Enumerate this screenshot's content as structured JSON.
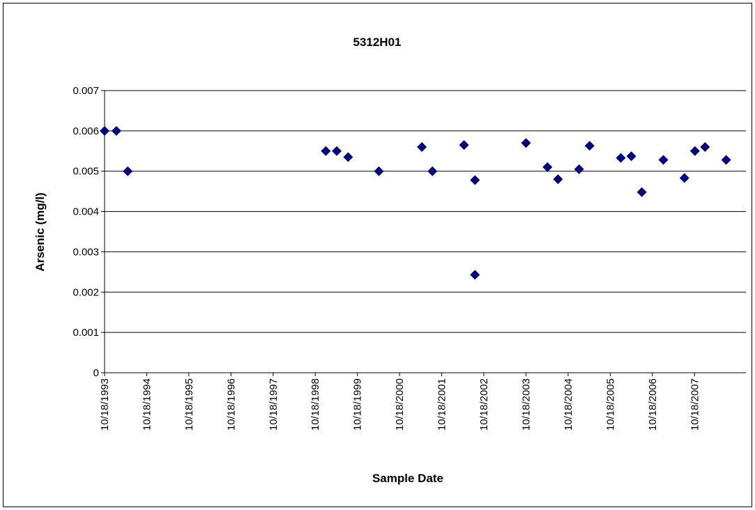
{
  "chart_data": {
    "type": "scatter",
    "title": "5312H01",
    "x_label": "Sample Date",
    "y_label": "Arsenic (mg/l)",
    "series": [
      {
        "name": "Arsenic",
        "color": "#000080",
        "x": [
          1993.8,
          1994.08,
          1994.35,
          1999.05,
          1999.31,
          1999.58,
          2000.31,
          2001.33,
          2001.58,
          2002.33,
          2002.59,
          2002.59,
          2003.8,
          2004.31,
          2004.56,
          2005.06,
          2005.31,
          2006.05,
          2006.3,
          2006.55,
          2007.06,
          2007.56,
          2007.81,
          2008.05,
          2008.55
        ],
        "values": [
          0.006,
          0.006,
          0.005,
          0.0055,
          0.0055,
          0.00535,
          0.005,
          0.0056,
          0.005,
          0.00565,
          0.00478,
          0.00243,
          0.0057,
          0.0051,
          0.0048,
          0.00505,
          0.00563,
          0.00533,
          0.00537,
          0.00448,
          0.00528,
          0.00483,
          0.0055,
          0.0056,
          0.00528
        ]
      }
    ],
    "xlim": [
      1993.8,
      2009.02
    ],
    "xticks": [
      {
        "value": 1993.8,
        "label": "10/18/1993"
      },
      {
        "value": 1994.8,
        "label": "10/18/1994"
      },
      {
        "value": 1995.8,
        "label": "10/18/1995"
      },
      {
        "value": 1996.8,
        "label": "10/18/1996"
      },
      {
        "value": 1997.8,
        "label": "10/18/1997"
      },
      {
        "value": 1998.8,
        "label": "10/18/1998"
      },
      {
        "value": 1999.8,
        "label": "10/18/1999"
      },
      {
        "value": 2000.8,
        "label": "10/18/2000"
      },
      {
        "value": 2001.8,
        "label": "10/18/2001"
      },
      {
        "value": 2002.8,
        "label": "10/18/2002"
      },
      {
        "value": 2003.8,
        "label": "10/18/2003"
      },
      {
        "value": 2004.8,
        "label": "10/18/2004"
      },
      {
        "value": 2005.8,
        "label": "10/18/2005"
      },
      {
        "value": 2006.8,
        "label": "10/18/2006"
      },
      {
        "value": 2007.8,
        "label": "10/18/2007"
      }
    ],
    "ylim": [
      0,
      0.007
    ],
    "yticks": [
      0,
      0.001,
      0.002,
      0.003,
      0.004,
      0.005,
      0.006,
      0.007
    ],
    "grid": true
  }
}
